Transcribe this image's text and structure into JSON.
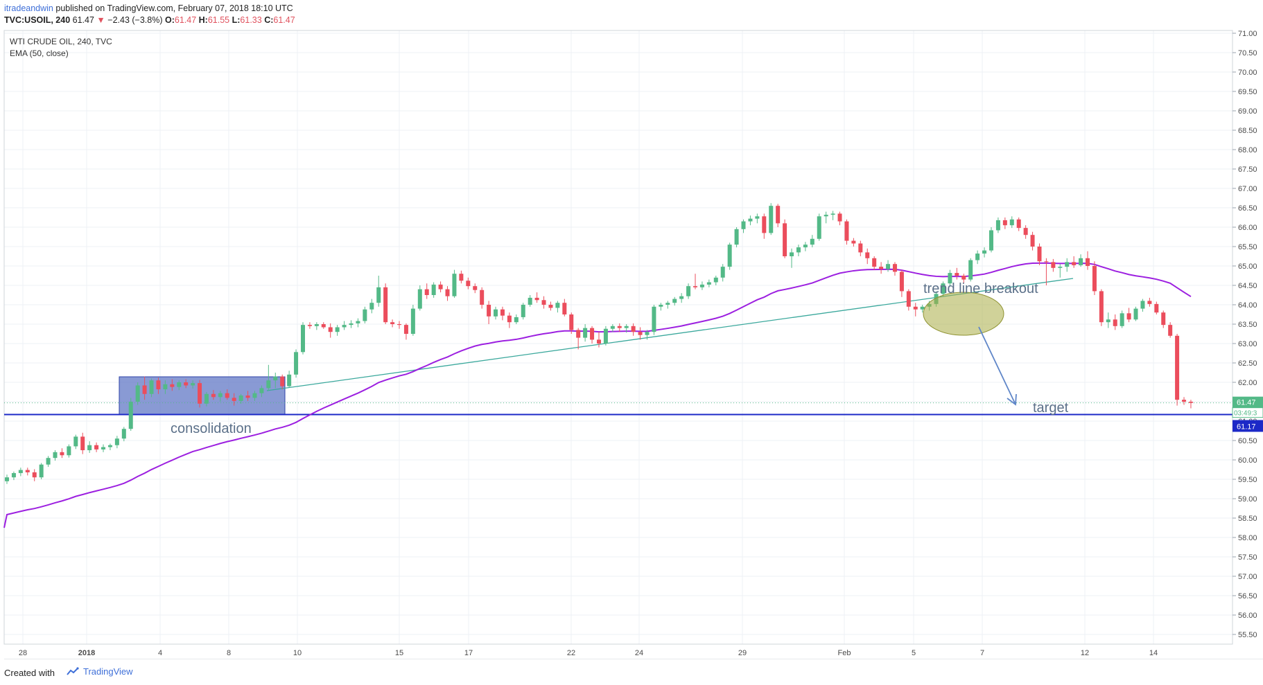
{
  "header": {
    "author": "itradeandwin",
    "published": " published on TradingView.com, February 07, 2018 18:10 UTC",
    "symbol": "TVC:USOIL, 240",
    "last": "61.47",
    "change": "−2.43 (−3.8%)",
    "o_label": "O:",
    "o_value": "61.47",
    "h_label": "H:",
    "h_value": "61.55",
    "l_label": "L:",
    "l_value": "61.33",
    "c_label": "C:",
    "c_value": "61.47",
    "down_arrow_icon": "triangle-down-icon"
  },
  "footer": {
    "created_with": "Created with",
    "brand": "TradingView",
    "brand_icon": "tradingview-logo-icon"
  },
  "colors": {
    "up_candle": "#53b987",
    "down_candle": "#eb4d5c",
    "ema": "#9c1fe0",
    "trendline": "#3aa89c",
    "support_line": "#1c29c7",
    "price_label_bg": "#53b987",
    "support_label_bg": "#1c29c7",
    "consolidation_fill": "#6178c6",
    "ellipse_fill": "#a9ad45",
    "annotation_text": "#5b7089"
  },
  "chart_data": {
    "type": "candlestick",
    "title": "WTI CRUDE OIL, 240, TVC",
    "indicator_label": "EMA (50, close)",
    "y_axis": {
      "ticks": [
        "71.00",
        "70.50",
        "70.00",
        "69.50",
        "69.00",
        "68.50",
        "68.00",
        "67.50",
        "67.00",
        "66.50",
        "66.00",
        "65.50",
        "65.00",
        "64.50",
        "64.00",
        "63.50",
        "63.00",
        "62.50",
        "62.00",
        "61.50",
        "61.00",
        "60.50",
        "60.00",
        "59.50",
        "59.00",
        "58.50",
        "58.00",
        "57.50",
        "57.00",
        "56.50",
        "56.00",
        "55.50"
      ],
      "range": [
        55.2,
        71.05
      ]
    },
    "x_axis": {
      "ticks": [
        "28",
        "2018",
        "4",
        "8",
        "10",
        "15",
        "17",
        "22",
        "24",
        "29",
        "Feb",
        "5",
        "7",
        "12",
        "14"
      ]
    },
    "current_price": {
      "label": "61.47",
      "countdown": "03:49:3"
    },
    "support_level": {
      "label": "61.17",
      "value": 61.17
    },
    "annotations": {
      "consolidation": "consolidation",
      "trendline_breakout": "trend line breakout",
      "target": "target"
    },
    "candles_ohlc": [
      [
        59.45,
        59.62,
        59.38,
        59.55
      ],
      [
        59.55,
        59.7,
        59.48,
        59.66
      ],
      [
        59.66,
        59.8,
        59.58,
        59.74
      ],
      [
        59.74,
        59.8,
        59.6,
        59.68
      ],
      [
        59.68,
        59.76,
        59.45,
        59.55
      ],
      [
        59.55,
        59.92,
        59.5,
        59.88
      ],
      [
        59.88,
        60.1,
        59.82,
        60.05
      ],
      [
        60.05,
        60.25,
        59.98,
        60.2
      ],
      [
        60.2,
        60.3,
        60.05,
        60.12
      ],
      [
        60.12,
        60.4,
        60.06,
        60.35
      ],
      [
        60.35,
        60.65,
        60.28,
        60.6
      ],
      [
        60.6,
        60.7,
        60.15,
        60.25
      ],
      [
        60.25,
        60.48,
        60.18,
        60.38
      ],
      [
        60.38,
        60.45,
        60.2,
        60.27
      ],
      [
        60.27,
        60.4,
        60.2,
        60.33
      ],
      [
        60.33,
        60.42,
        60.25,
        60.38
      ],
      [
        60.38,
        60.62,
        60.3,
        60.55
      ],
      [
        60.55,
        60.85,
        60.48,
        60.8
      ],
      [
        60.8,
        61.6,
        60.75,
        61.5
      ],
      [
        61.5,
        62.0,
        61.42,
        61.92
      ],
      [
        61.92,
        62.15,
        61.55,
        61.7
      ],
      [
        61.7,
        62.1,
        61.62,
        62.05
      ],
      [
        62.05,
        62.12,
        61.7,
        61.82
      ],
      [
        61.82,
        62.05,
        61.7,
        61.95
      ],
      [
        61.95,
        62.08,
        61.78,
        61.88
      ],
      [
        61.88,
        62.05,
        61.8,
        62.0
      ],
      [
        62.0,
        62.08,
        61.85,
        61.92
      ],
      [
        61.92,
        62.05,
        61.84,
        61.98
      ],
      [
        61.98,
        62.06,
        61.35,
        61.45
      ],
      [
        61.45,
        61.75,
        61.38,
        61.7
      ],
      [
        61.7,
        61.8,
        61.55,
        61.62
      ],
      [
        61.62,
        61.78,
        61.5,
        61.72
      ],
      [
        61.72,
        61.82,
        61.55,
        61.6
      ],
      [
        61.6,
        61.72,
        61.4,
        61.52
      ],
      [
        61.52,
        61.7,
        61.45,
        61.66
      ],
      [
        61.66,
        61.78,
        61.52,
        61.6
      ],
      [
        61.6,
        61.78,
        61.52,
        61.72
      ],
      [
        61.72,
        61.92,
        61.62,
        61.85
      ],
      [
        61.85,
        62.45,
        61.78,
        62.05
      ],
      [
        62.05,
        62.25,
        61.85,
        62.15
      ],
      [
        62.15,
        62.2,
        61.82,
        61.9
      ],
      [
        61.9,
        62.3,
        61.86,
        62.2
      ],
      [
        62.2,
        62.85,
        62.12,
        62.78
      ],
      [
        62.78,
        63.55,
        62.72,
        63.48
      ],
      [
        63.48,
        63.55,
        63.38,
        63.45
      ],
      [
        63.45,
        63.55,
        63.35,
        63.5
      ],
      [
        63.5,
        63.55,
        63.38,
        63.42
      ],
      [
        63.42,
        63.52,
        63.15,
        63.3
      ],
      [
        63.3,
        63.48,
        63.2,
        63.42
      ],
      [
        63.42,
        63.58,
        63.35,
        63.48
      ],
      [
        63.48,
        63.6,
        63.4,
        63.52
      ],
      [
        63.52,
        63.65,
        63.42,
        63.58
      ],
      [
        63.58,
        63.95,
        63.52,
        63.88
      ],
      [
        63.88,
        64.15,
        63.78,
        64.05
      ],
      [
        64.05,
        64.75,
        63.95,
        64.45
      ],
      [
        64.45,
        64.55,
        63.5,
        63.55
      ],
      [
        63.55,
        63.62,
        63.42,
        63.5
      ],
      [
        63.5,
        63.58,
        63.38,
        63.48
      ],
      [
        63.48,
        63.52,
        63.1,
        63.25
      ],
      [
        63.25,
        64.0,
        63.2,
        63.9
      ],
      [
        63.9,
        64.5,
        63.85,
        64.4
      ],
      [
        64.4,
        64.55,
        64.15,
        64.25
      ],
      [
        64.25,
        64.58,
        64.18,
        64.52
      ],
      [
        64.52,
        64.6,
        64.32,
        64.4
      ],
      [
        64.4,
        64.48,
        64.1,
        64.22
      ],
      [
        64.22,
        64.9,
        64.18,
        64.8
      ],
      [
        64.8,
        64.88,
        64.55,
        64.62
      ],
      [
        64.62,
        64.7,
        64.4,
        64.48
      ],
      [
        64.48,
        64.55,
        64.3,
        64.38
      ],
      [
        64.38,
        64.45,
        63.9,
        64.0
      ],
      [
        64.0,
        64.1,
        63.5,
        63.7
      ],
      [
        63.7,
        63.95,
        63.62,
        63.88
      ],
      [
        63.88,
        63.95,
        63.6,
        63.72
      ],
      [
        63.72,
        63.8,
        63.4,
        63.55
      ],
      [
        63.55,
        63.75,
        63.5,
        63.68
      ],
      [
        63.68,
        64.05,
        63.62,
        64.0
      ],
      [
        64.0,
        64.25,
        63.95,
        64.18
      ],
      [
        64.18,
        64.32,
        64.05,
        64.12
      ],
      [
        64.12,
        64.22,
        63.9,
        64.0
      ],
      [
        64.0,
        64.08,
        63.85,
        63.92
      ],
      [
        63.92,
        64.1,
        63.8,
        64.05
      ],
      [
        64.05,
        64.15,
        63.7,
        63.75
      ],
      [
        63.75,
        63.8,
        63.25,
        63.35
      ],
      [
        63.35,
        63.4,
        62.85,
        63.15
      ],
      [
        63.15,
        63.5,
        63.05,
        63.4
      ],
      [
        63.4,
        63.45,
        63.0,
        63.1
      ],
      [
        63.1,
        63.3,
        62.9,
        63.0
      ],
      [
        63.0,
        63.45,
        62.95,
        63.38
      ],
      [
        63.38,
        63.5,
        63.3,
        63.45
      ],
      [
        63.45,
        63.52,
        63.3,
        63.4
      ],
      [
        63.4,
        63.5,
        63.28,
        63.45
      ],
      [
        63.45,
        63.52,
        63.2,
        63.3
      ],
      [
        63.3,
        63.42,
        63.1,
        63.22
      ],
      [
        63.22,
        63.35,
        63.1,
        63.3
      ],
      [
        63.3,
        64.0,
        63.22,
        63.95
      ],
      [
        63.95,
        64.05,
        63.85,
        64.0
      ],
      [
        64.0,
        64.1,
        63.9,
        64.05
      ],
      [
        64.05,
        64.2,
        63.98,
        64.15
      ],
      [
        64.15,
        64.3,
        64.05,
        64.22
      ],
      [
        64.22,
        64.55,
        64.15,
        64.48
      ],
      [
        64.48,
        64.8,
        64.4,
        64.45
      ],
      [
        64.45,
        64.6,
        64.38,
        64.52
      ],
      [
        64.52,
        64.65,
        64.45,
        64.58
      ],
      [
        64.58,
        64.75,
        64.5,
        64.7
      ],
      [
        64.7,
        65.05,
        64.6,
        64.98
      ],
      [
        64.98,
        65.6,
        64.9,
        65.55
      ],
      [
        65.55,
        66.0,
        65.48,
        65.95
      ],
      [
        65.95,
        66.2,
        65.85,
        66.15
      ],
      [
        66.15,
        66.3,
        66.05,
        66.22
      ],
      [
        66.22,
        66.35,
        66.1,
        66.28
      ],
      [
        66.28,
        66.35,
        65.7,
        65.85
      ],
      [
        65.85,
        66.62,
        65.8,
        66.55
      ],
      [
        66.55,
        66.6,
        66.0,
        66.1
      ],
      [
        66.1,
        66.2,
        65.2,
        65.25
      ],
      [
        65.25,
        65.45,
        64.95,
        65.35
      ],
      [
        65.35,
        65.55,
        65.25,
        65.48
      ],
      [
        65.48,
        65.62,
        65.38,
        65.55
      ],
      [
        65.55,
        65.8,
        65.48,
        65.7
      ],
      [
        65.7,
        66.35,
        65.65,
        66.28
      ],
      [
        66.28,
        66.4,
        66.1,
        66.32
      ],
      [
        66.32,
        66.42,
        66.18,
        66.35
      ],
      [
        66.35,
        66.4,
        66.05,
        66.15
      ],
      [
        66.15,
        66.2,
        65.55,
        65.65
      ],
      [
        65.65,
        65.72,
        65.5,
        65.58
      ],
      [
        65.58,
        65.65,
        65.25,
        65.35
      ],
      [
        65.35,
        65.45,
        65.05,
        65.2
      ],
      [
        65.2,
        65.25,
        64.9,
        64.98
      ],
      [
        64.98,
        65.1,
        64.8,
        64.92
      ],
      [
        64.92,
        65.15,
        64.85,
        65.05
      ],
      [
        65.05,
        65.1,
        64.75,
        64.85
      ],
      [
        64.85,
        64.9,
        64.2,
        64.35
      ],
      [
        64.35,
        64.4,
        63.85,
        63.95
      ],
      [
        63.95,
        64.05,
        63.7,
        63.88
      ],
      [
        63.88,
        64.0,
        63.8,
        63.95
      ],
      [
        63.95,
        64.1,
        63.85,
        64.02
      ],
      [
        64.02,
        64.35,
        63.95,
        64.28
      ],
      [
        64.28,
        64.6,
        64.2,
        64.55
      ],
      [
        64.55,
        64.9,
        64.48,
        64.82
      ],
      [
        64.82,
        64.95,
        64.65,
        64.75
      ],
      [
        64.75,
        64.8,
        64.55,
        64.65
      ],
      [
        64.65,
        65.2,
        64.6,
        65.15
      ],
      [
        65.15,
        65.4,
        65.05,
        65.32
      ],
      [
        65.32,
        65.48,
        65.22,
        65.4
      ],
      [
        65.4,
        66.0,
        65.35,
        65.92
      ],
      [
        65.92,
        66.25,
        65.85,
        66.18
      ],
      [
        66.18,
        66.25,
        65.95,
        66.05
      ],
      [
        66.05,
        66.28,
        65.98,
        66.2
      ],
      [
        66.2,
        66.25,
        65.9,
        65.98
      ],
      [
        65.98,
        66.05,
        65.7,
        65.8
      ],
      [
        65.8,
        65.88,
        65.4,
        65.5
      ],
      [
        65.5,
        65.58,
        65.02,
        65.12
      ],
      [
        65.12,
        65.2,
        64.5,
        65.1
      ],
      [
        65.1,
        65.18,
        64.85,
        64.95
      ],
      [
        64.95,
        65.05,
        64.7,
        64.98
      ],
      [
        64.98,
        65.2,
        64.85,
        65.1
      ],
      [
        65.1,
        65.25,
        64.95,
        65.02
      ],
      [
        65.02,
        65.3,
        64.98,
        65.2
      ],
      [
        65.2,
        65.38,
        64.9,
        65.0
      ],
      [
        65.0,
        65.12,
        64.25,
        64.35
      ],
      [
        64.35,
        64.4,
        63.45,
        63.55
      ],
      [
        63.55,
        63.8,
        63.4,
        63.62
      ],
      [
        63.62,
        63.75,
        63.35,
        63.45
      ],
      [
        63.45,
        63.85,
        63.4,
        63.78
      ],
      [
        63.78,
        63.92,
        63.55,
        63.62
      ],
      [
        63.62,
        63.95,
        63.58,
        63.9
      ],
      [
        63.9,
        64.15,
        63.82,
        64.1
      ],
      [
        64.1,
        64.18,
        63.95,
        64.02
      ],
      [
        64.02,
        64.08,
        63.75,
        63.8
      ],
      [
        63.8,
        63.85,
        63.4,
        63.48
      ],
      [
        63.48,
        63.55,
        63.15,
        63.2
      ],
      [
        63.2,
        63.25,
        61.4,
        61.55
      ],
      [
        61.55,
        61.62,
        61.42,
        61.5
      ],
      [
        61.5,
        61.55,
        61.33,
        61.47
      ]
    ]
  }
}
